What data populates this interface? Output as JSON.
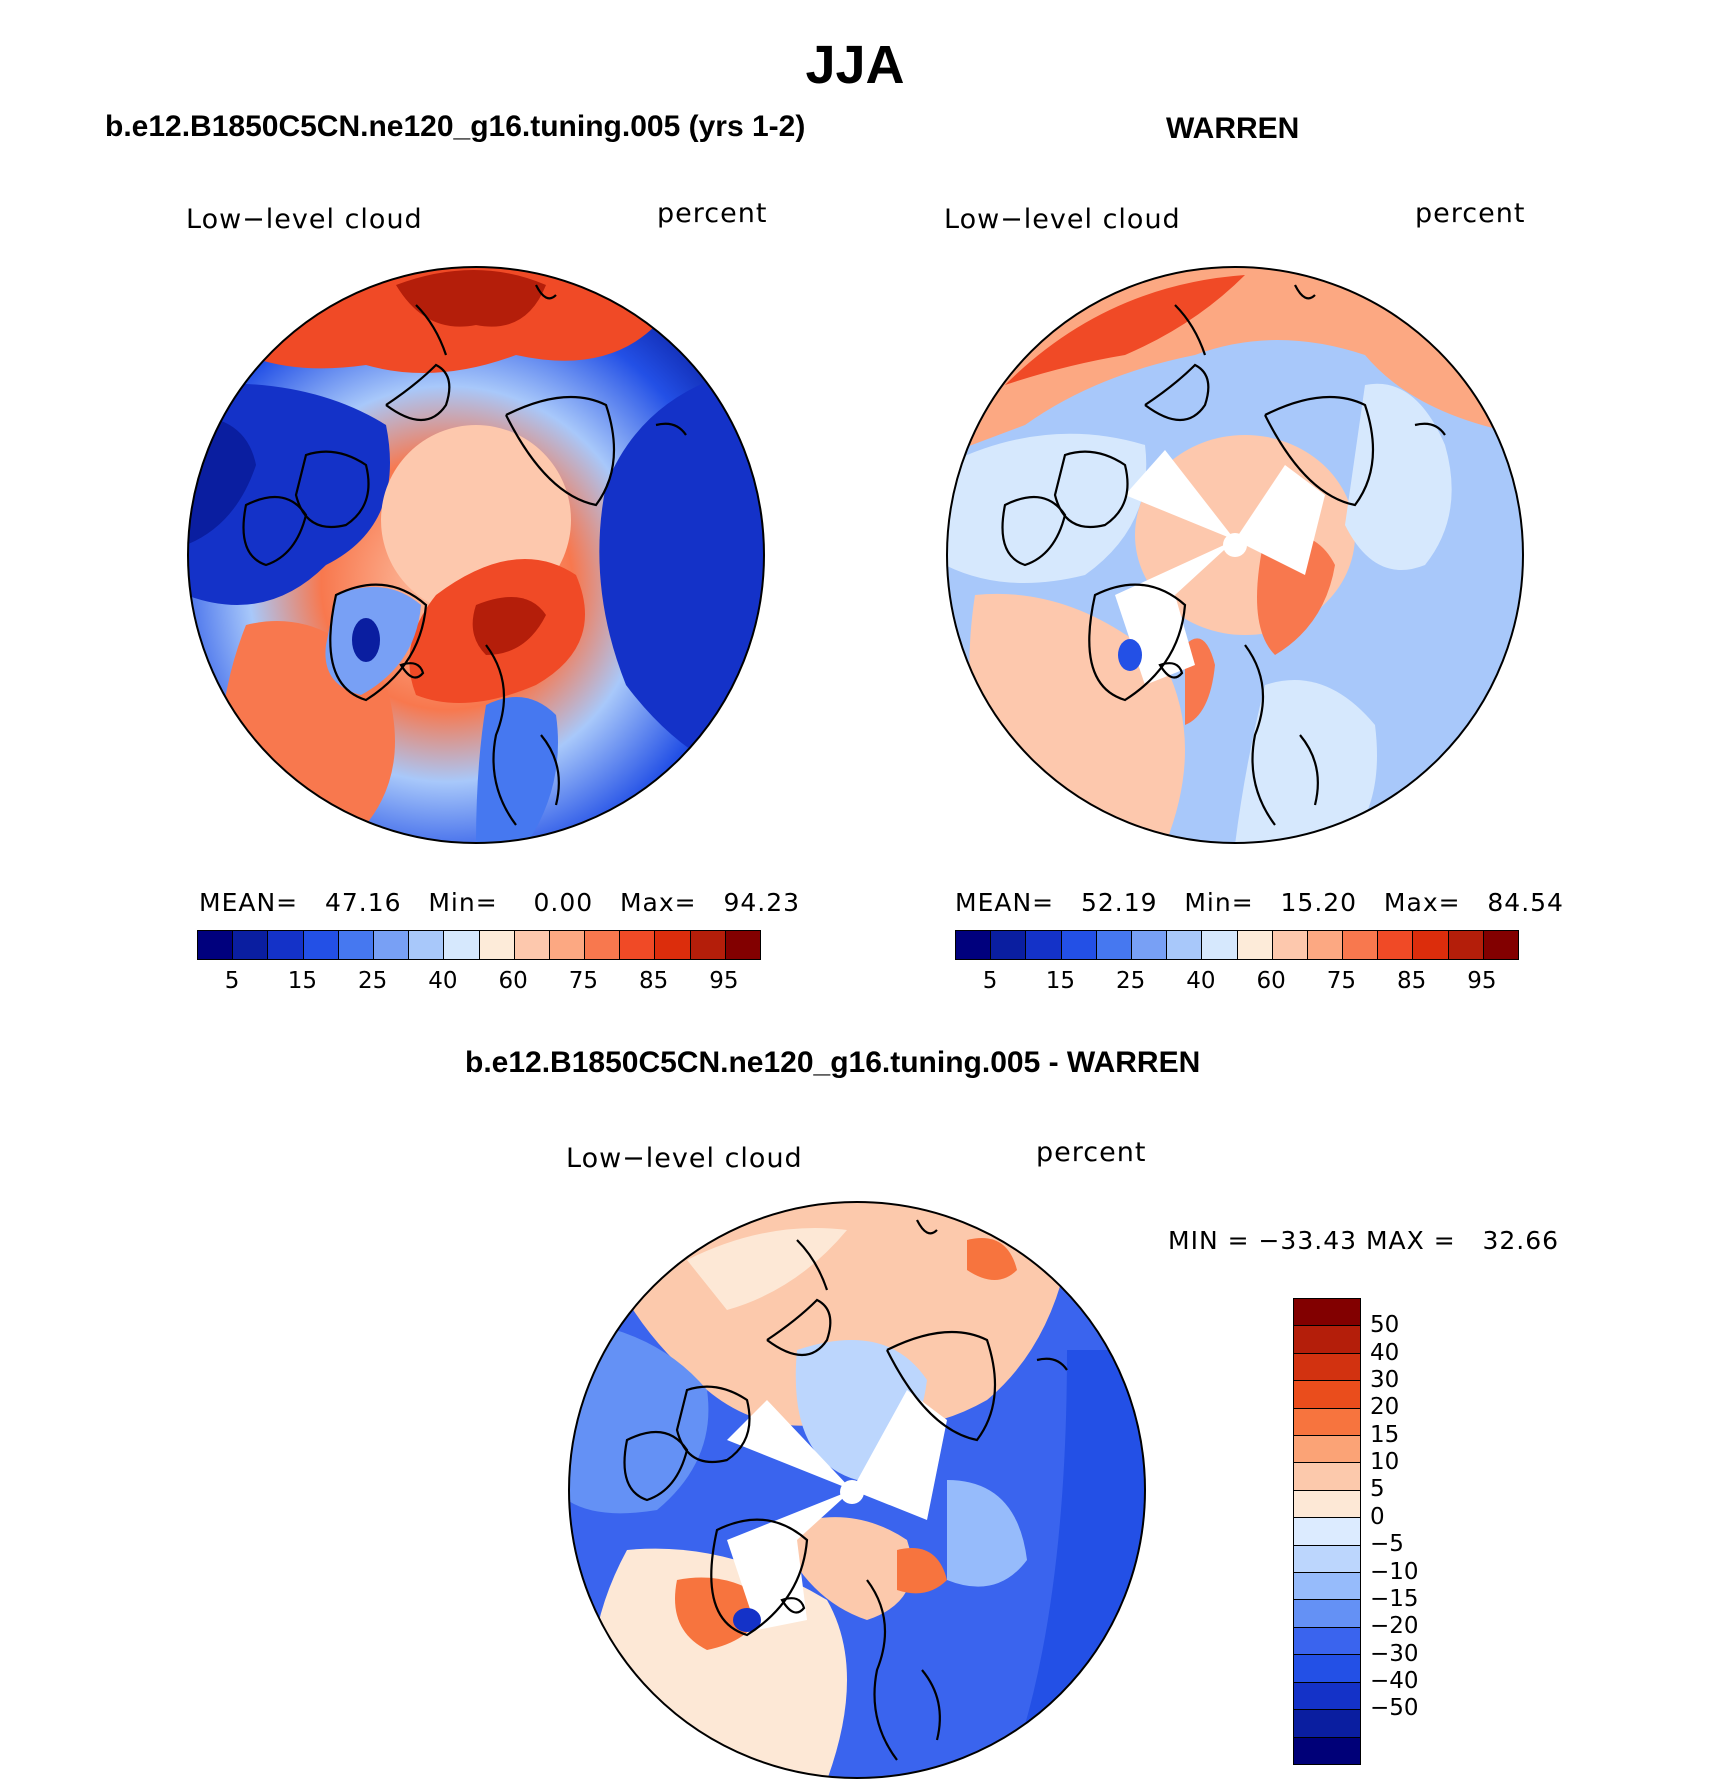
{
  "figure": {
    "title": "JJA"
  },
  "colors": {
    "abs_palette": [
      "#00007d",
      "#0a1ea0",
      "#1432c8",
      "#2350e6",
      "#4678f0",
      "#78a0f5",
      "#a8c8fa",
      "#d6e8fd",
      "#fdebd9",
      "#fdc8ad",
      "#fca882",
      "#f8784e",
      "#f04a26",
      "#dc2d0c",
      "#b41e0a",
      "#820000"
    ],
    "diff_palette": [
      "#000078",
      "#0a1ea0",
      "#1432c8",
      "#2350e6",
      "#3a64ee",
      "#6491f5",
      "#96bbfb",
      "#bcd6fd",
      "#dcebff",
      "#fde8d6",
      "#fcc9ac",
      "#fba376",
      "#f7743e",
      "#ea4d1c",
      "#d23210",
      "#b41e0a",
      "#820000"
    ]
  },
  "chart_data": [
    {
      "type": "polar-contour-map",
      "title": "b.e12.B1850C5CN.ne120_g16.tuning.005 (yrs 1-2)",
      "variable_label": "Low−level cloud",
      "units_label": "percent",
      "stats": {
        "mean": "47.16",
        "min": "0.00",
        "max": "94.23"
      },
      "stats_text": "MEAN=   47.16   Min=    0.00   Max=   94.23",
      "colorbar": {
        "orientation": "horizontal",
        "levels": [
          5,
          10,
          15,
          20,
          25,
          30,
          40,
          50,
          60,
          70,
          75,
          80,
          85,
          90,
          95
        ],
        "tick_labels": [
          "5",
          "15",
          "25",
          "40",
          "60",
          "75",
          "85",
          "95"
        ]
      }
    },
    {
      "type": "polar-contour-map",
      "title": "WARREN",
      "variable_label": "Low−level cloud",
      "units_label": "percent",
      "stats": {
        "mean": "52.19",
        "min": "15.20",
        "max": "84.54"
      },
      "stats_text": "MEAN=   52.19   Min=   15.20   Max=   84.54",
      "colorbar": {
        "orientation": "horizontal",
        "levels": [
          5,
          10,
          15,
          20,
          25,
          30,
          40,
          50,
          60,
          70,
          75,
          80,
          85,
          90,
          95
        ],
        "tick_labels": [
          "5",
          "15",
          "25",
          "40",
          "60",
          "75",
          "85",
          "95"
        ]
      }
    },
    {
      "type": "polar-contour-map",
      "title": "b.e12.B1850C5CN.ne120_g16.tuning.005 - WARREN",
      "variable_label": "Low−level cloud",
      "units_label": "percent",
      "stats": {
        "min": "−33.43",
        "max": "32.66"
      },
      "stats_text": "MIN = −33.43 MAX =   32.66",
      "colorbar": {
        "orientation": "vertical",
        "levels": [
          50,
          40,
          30,
          20,
          15,
          10,
          5,
          0,
          -5,
          -10,
          -15,
          -20,
          -30,
          -40,
          -50
        ],
        "tick_labels": [
          "50",
          "40",
          "30",
          "20",
          "15",
          "10",
          "5",
          "0",
          "−5",
          "−10",
          "−15",
          "−20",
          "−30",
          "−40",
          "−50"
        ]
      }
    }
  ]
}
